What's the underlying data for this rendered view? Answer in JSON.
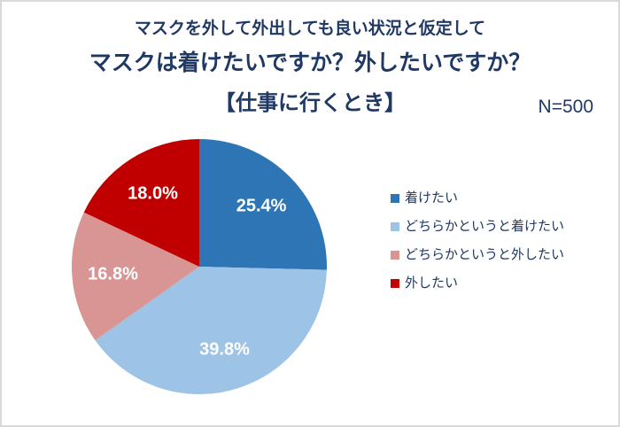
{
  "header": {
    "subtitle": "マスクを外して外出しても良い状況と仮定して",
    "title": "マスクは着けたいですか？外したいですか？",
    "context": "【仕事に行くとき】",
    "sample_size": "N=500"
  },
  "chart_data": {
    "type": "pie",
    "title": "マスクは着けたいですか？外したいですか？【仕事に行くとき】",
    "subtitle": "マスクを外して外出しても良い状況と仮定して",
    "context": "【仕事に行くとき】",
    "sample_size": "N=500",
    "categories": [
      "着けたい",
      "どちらかというと着けたい",
      "どちらかというと外したい",
      "外したい"
    ],
    "values": [
      25.4,
      39.8,
      16.8,
      18.0
    ],
    "labels": [
      "25.4%",
      "39.8%",
      "16.8%",
      "18.0%"
    ],
    "colors": [
      "#2e75b6",
      "#9dc3e6",
      "#d99594",
      "#c00000"
    ],
    "start_angle_deg": 0,
    "direction": "clockwise",
    "legend_position": "right",
    "data_label_color": "#ffffff",
    "text_color": "#1f3864",
    "frame_border_color": "#d9d9d9",
    "background_color": "#ffffff"
  }
}
